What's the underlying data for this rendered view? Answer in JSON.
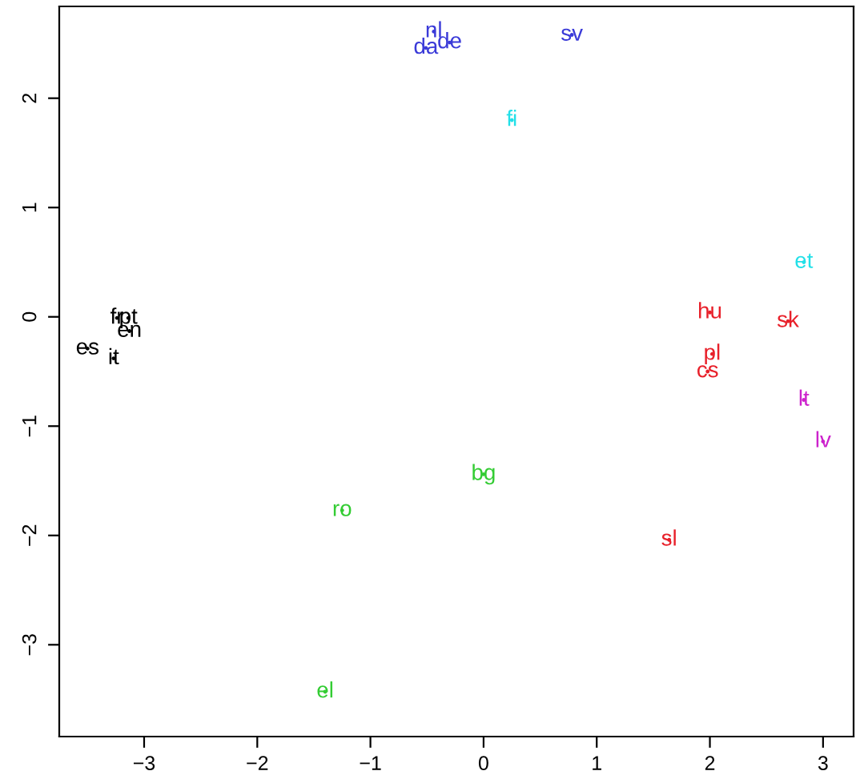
{
  "chart_data": {
    "type": "scatter",
    "marker": "none",
    "grid": false,
    "legend": false,
    "xlim": [
      -3.75,
      3.27
    ],
    "ylim": [
      -3.84,
      2.84
    ],
    "xticks": [
      -3,
      -2,
      -1,
      0,
      1,
      2,
      3
    ],
    "yticks": [
      -3,
      -2,
      -1,
      0,
      1,
      2
    ],
    "series": [
      {
        "color": "#000000",
        "x": [
          -3.24,
          -3.14,
          -3.13,
          -3.5,
          -3.27
        ],
        "values": [
          -0.01,
          -0.01,
          -0.13,
          -0.29,
          -0.38
        ],
        "value_labels": [
          "fr",
          "pt",
          "en",
          "es",
          "it"
        ]
      },
      {
        "color": "#3a3ad8",
        "x": [
          -0.44,
          -0.51,
          -0.3,
          0.78
        ],
        "values": [
          2.61,
          2.46,
          2.51,
          2.58
        ],
        "value_labels": [
          "nl",
          "da",
          "de",
          "sv"
        ]
      },
      {
        "color": "#22e0e8",
        "x": [
          0.25,
          2.83
        ],
        "values": [
          1.8,
          0.5
        ],
        "value_labels": [
          "fi",
          "et"
        ]
      },
      {
        "color": "#e8202a",
        "x": [
          2.0,
          2.69,
          2.02,
          1.98,
          1.64
        ],
        "values": [
          0.04,
          -0.04,
          -0.34,
          -0.5,
          -2.04
        ],
        "value_labels": [
          "hu",
          "sk",
          "pl",
          "cs",
          "sl"
        ]
      },
      {
        "color": "#cc22cc",
        "x": [
          2.83,
          3.0
        ],
        "values": [
          -0.76,
          -1.14
        ],
        "value_labels": [
          "lt",
          "lv"
        ]
      },
      {
        "color": "#33cc33",
        "x": [
          0.0,
          -1.25,
          -1.4
        ],
        "values": [
          -1.44,
          -1.77,
          -3.43
        ],
        "value_labels": [
          "bg",
          "ro",
          "el"
        ]
      }
    ]
  }
}
